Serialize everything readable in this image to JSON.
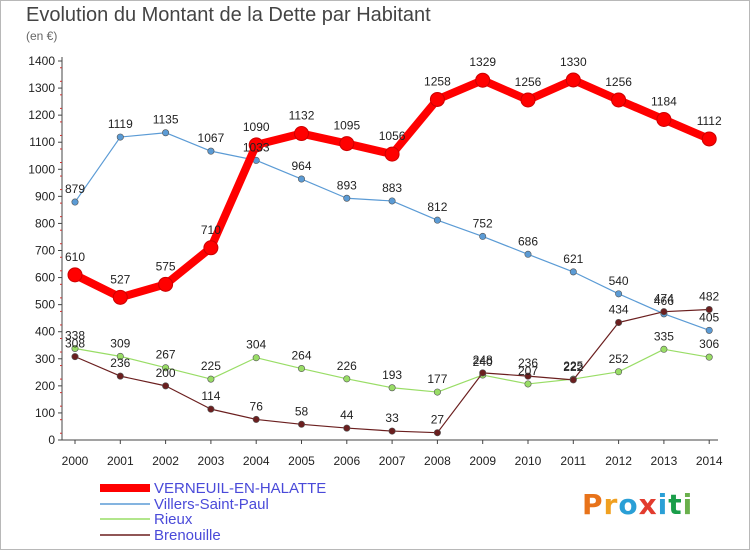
{
  "title": "Evolution du Montant de la Dette par Habitant",
  "subtitle": "(en €)",
  "logo": "Proxiti",
  "chart_data": {
    "type": "line",
    "title": "Evolution du Montant de la Dette par Habitant",
    "subtitle": "(en €)",
    "x": [
      "2000",
      "2001",
      "2002",
      "2003",
      "2004",
      "2005",
      "2006",
      "2007",
      "2008",
      "2009",
      "2010",
      "2011",
      "2012",
      "2013",
      "2014"
    ],
    "ylim": [
      0,
      1400
    ],
    "yticks": [
      0,
      100,
      200,
      300,
      400,
      500,
      600,
      700,
      800,
      900,
      1000,
      1100,
      1200,
      1300,
      1400
    ],
    "grid": false,
    "legend_position": "bottom-left",
    "series": [
      {
        "name": "VERNEUIL-EN-HALATTE",
        "color": "#ff0000",
        "values": [
          610,
          527,
          575,
          710,
          1090,
          1132,
          1095,
          1056,
          1258,
          1329,
          1256,
          1330,
          1256,
          1184,
          1112
        ]
      },
      {
        "name": "Villers-Saint-Paul",
        "color": "#5b9bd5",
        "values": [
          879,
          1119,
          1135,
          1067,
          1033,
          964,
          893,
          883,
          812,
          752,
          686,
          621,
          540,
          466,
          405
        ]
      },
      {
        "name": "Rieux",
        "color": "#99dd66",
        "values": [
          338,
          309,
          267,
          225,
          304,
          264,
          226,
          193,
          177,
          240,
          207,
          225,
          252,
          335,
          306
        ]
      },
      {
        "name": "Brenouille",
        "color": "#6b1f1f",
        "values": [
          308,
          236,
          200,
          114,
          76,
          58,
          44,
          33,
          27,
          248,
          236,
          222,
          434,
          474,
          482
        ]
      }
    ],
    "data_labels": [
      [
        "610",
        "527",
        "575",
        "710",
        "1090",
        "1132",
        "1095",
        "1056",
        "1258",
        "1329",
        "1256",
        "1330",
        "1256",
        "1184",
        "1112"
      ],
      [
        "879",
        "1119",
        "1135",
        "1067",
        "1033",
        "964",
        "893",
        "883",
        "812",
        "752",
        "686",
        "621",
        "540",
        "466",
        "405"
      ],
      [
        "338",
        "309",
        "267",
        "225",
        "304",
        "264",
        "226",
        "193",
        "177",
        "240",
        "207",
        "225",
        "252",
        "335",
        "306"
      ],
      [
        "308",
        "236",
        "200",
        "114",
        "76",
        "58",
        "44",
        "33",
        "27",
        "248",
        "236",
        "222",
        "434",
        "474",
        "482"
      ]
    ]
  }
}
